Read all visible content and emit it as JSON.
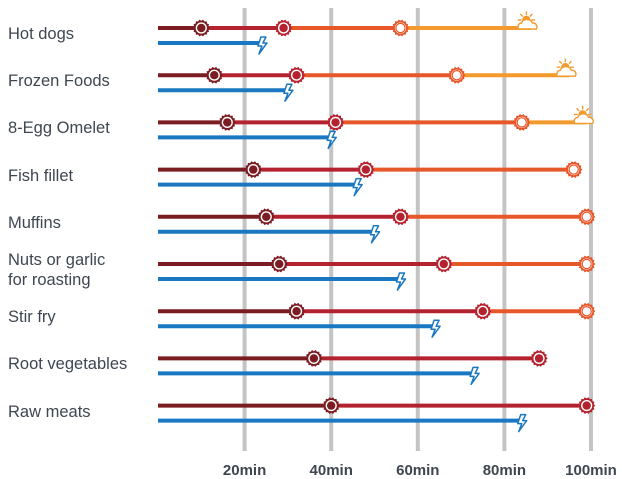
{
  "chart_data": {
    "type": "line",
    "categories": [
      "Hot dogs",
      "Frozen Foods",
      "8-Egg Omelet",
      "Fish fillet",
      "Muffins",
      "Nuts or garlic\nfor roasting",
      "Stir fry",
      "Root vegetables",
      "Raw meats"
    ],
    "x_ticks": [
      "20min",
      "40min",
      "60min",
      "80min",
      "100min"
    ],
    "x_tick_values": [
      20,
      40,
      60,
      80,
      100
    ],
    "xlim": [
      0,
      100
    ],
    "grid": true,
    "series": [
      {
        "values": [
          [
            10,
            29,
            56,
            86
          ],
          [
            13,
            32,
            69,
            95
          ],
          [
            16,
            41,
            84,
            99
          ],
          [
            22,
            48,
            96,
            96
          ],
          [
            25,
            56,
            99,
            99
          ],
          [
            28,
            66,
            99,
            99
          ],
          [
            32,
            75,
            99,
            99
          ],
          [
            36,
            88,
            88,
            88
          ],
          [
            40,
            99,
            99,
            99
          ]
        ]
      },
      {
        "values": [
          24,
          30,
          40,
          46,
          50,
          56,
          64,
          73,
          84
        ]
      }
    ],
    "marker_icons": [
      "dark-red-sun-icon",
      "red-sun-icon",
      "orange-sun-icon",
      "sun-cloud-icon",
      "lightning-icon"
    ],
    "colors": {
      "dark_red": "#7a1c21",
      "red": "#b5222f",
      "orange": "#e8572a",
      "light_orange": "#f39a2e",
      "blue": "#1a78c2",
      "grid": "#c4c4c4",
      "text": "#3f4650"
    }
  }
}
